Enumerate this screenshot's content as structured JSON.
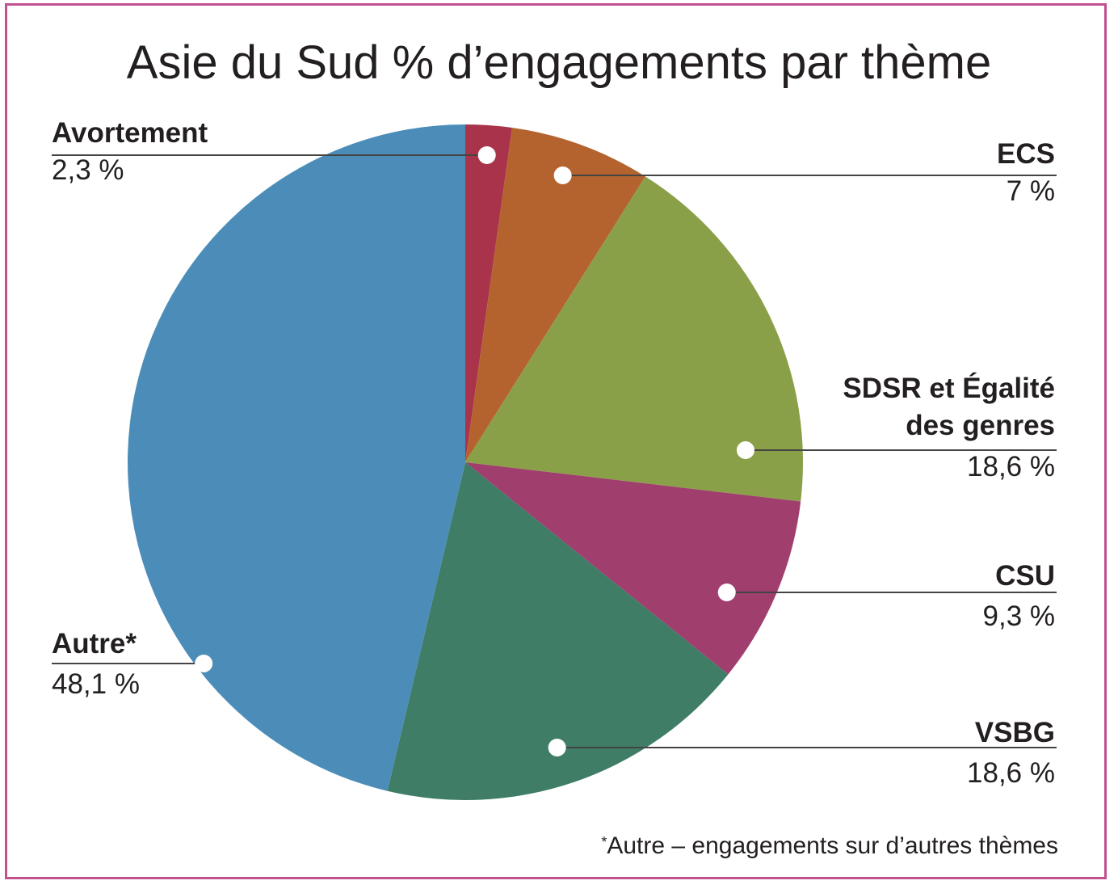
{
  "chart_data": {
    "type": "pie",
    "title": "Asie du Sud % d’engagements par thème",
    "slices": [
      {
        "label": "Avortement",
        "value": 2.3,
        "display": "2,3 %",
        "color": "#a8334a"
      },
      {
        "label": "ECS",
        "value": 7.0,
        "display": "7 %",
        "color": "#b4632e"
      },
      {
        "label": "SDSR et Égalité des genres",
        "label_line1": "SDSR et Égalité",
        "label_line2": "des genres",
        "value": 18.6,
        "display": "18,6 %",
        "color": "#8aa048"
      },
      {
        "label": "CSU",
        "value": 9.3,
        "display": "9,3 %",
        "color": "#a03e6e"
      },
      {
        "label": "VSBG",
        "value": 18.6,
        "display": "18,6 %",
        "color": "#3f7d66"
      },
      {
        "label": "Autre*",
        "value": 48.1,
        "display": "48,1 %",
        "color": "#4b8db8"
      }
    ],
    "footnote_mark": "*",
    "footnote": "Autre – engagements sur d’autres thèmes"
  },
  "colors": {
    "frame": "#c0508f",
    "leader": "#444444",
    "dot": "#ffffff"
  }
}
